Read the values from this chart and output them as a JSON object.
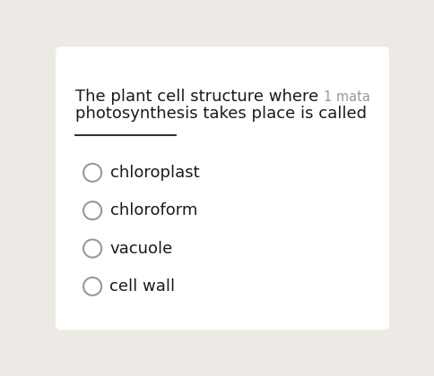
{
  "bg_outer": "#edeae5",
  "bg_card": "#ffffff",
  "question_line1": "The plant cell structure where",
  "question_line2": "photosynthesis takes place is called",
  "points_text": "1 mata",
  "options": [
    "chloroplast",
    "chloroform",
    "vacuole",
    "cell wall"
  ],
  "question_fontsize": 13.0,
  "points_fontsize": 10.5,
  "option_fontsize": 13.0,
  "text_color": "#1a1a1a",
  "points_color": "#999999",
  "circle_color": "#999999",
  "line_color": "#1a1a1a"
}
